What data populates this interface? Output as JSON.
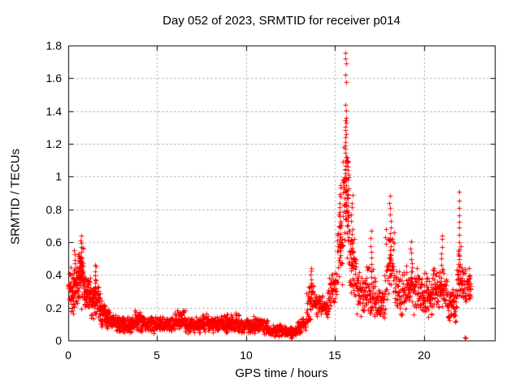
{
  "window": {
    "background": "#ffffff",
    "text_color": "#000000"
  },
  "chart_data": {
    "type": "scatter",
    "title": "Day 052 of 2023, SRMTID for receiver p014",
    "xlabel": "GPS time / hours",
    "ylabel": "SRMTID / TECUs",
    "xlim": [
      0,
      24
    ],
    "ylim": [
      0,
      1.8
    ],
    "xticks": {
      "values": [
        0,
        5,
        10,
        15,
        20
      ],
      "labels": [
        "0",
        "5",
        "10",
        "15",
        "20"
      ]
    },
    "yticks": {
      "values": [
        0,
        0.2,
        0.4,
        0.6,
        0.8,
        1.0,
        1.2,
        1.4,
        1.6,
        1.8
      ],
      "labels": [
        "0",
        "0.2",
        "0.4",
        "0.6",
        "0.8",
        "1",
        "1.2",
        "1.4",
        "1.6",
        "1.8"
      ]
    },
    "grid": {
      "show": true,
      "color": "#9e9e9e",
      "dash": [
        2,
        3
      ]
    },
    "border_color": "#000000",
    "marker": {
      "shape": "plus",
      "color": "#ff0000",
      "size": 7
    },
    "legend": {
      "show": false
    },
    "bands_format": "[hour_start, hour_end, n_points, y_center_start, y_center_end, y_half_spread]",
    "bands": [
      [
        0.0,
        0.15,
        22,
        0.32,
        0.32,
        0.15
      ],
      [
        0.15,
        0.55,
        60,
        0.3,
        0.32,
        0.16
      ],
      [
        0.55,
        0.85,
        55,
        0.4,
        0.38,
        0.2
      ],
      [
        0.85,
        1.3,
        70,
        0.3,
        0.26,
        0.13
      ],
      [
        1.3,
        1.8,
        75,
        0.26,
        0.22,
        0.13
      ],
      [
        1.8,
        2.3,
        70,
        0.18,
        0.14,
        0.09
      ],
      [
        2.3,
        3.0,
        85,
        0.12,
        0.1,
        0.06
      ],
      [
        3.0,
        3.7,
        80,
        0.1,
        0.1,
        0.055
      ],
      [
        3.7,
        4.1,
        48,
        0.13,
        0.12,
        0.07
      ],
      [
        4.1,
        5.0,
        100,
        0.1,
        0.1,
        0.055
      ],
      [
        5.0,
        6.0,
        110,
        0.1,
        0.11,
        0.055
      ],
      [
        6.0,
        6.6,
        65,
        0.13,
        0.12,
        0.07
      ],
      [
        6.6,
        7.5,
        100,
        0.09,
        0.1,
        0.05
      ],
      [
        7.5,
        8.2,
        78,
        0.11,
        0.1,
        0.06
      ],
      [
        8.2,
        9.0,
        88,
        0.1,
        0.11,
        0.06
      ],
      [
        9.0,
        9.6,
        66,
        0.12,
        0.11,
        0.065
      ],
      [
        9.6,
        10.4,
        88,
        0.09,
        0.09,
        0.05
      ],
      [
        10.4,
        11.2,
        88,
        0.1,
        0.09,
        0.06
      ],
      [
        11.2,
        12.2,
        105,
        0.07,
        0.065,
        0.045
      ],
      [
        12.2,
        12.9,
        70,
        0.055,
        0.06,
        0.035
      ],
      [
        12.9,
        13.4,
        52,
        0.08,
        0.11,
        0.05
      ],
      [
        13.4,
        13.8,
        42,
        0.2,
        0.24,
        0.14
      ],
      [
        13.8,
        14.6,
        75,
        0.22,
        0.2,
        0.08
      ],
      [
        14.6,
        15.1,
        48,
        0.26,
        0.38,
        0.13
      ],
      [
        15.1,
        15.45,
        40,
        0.55,
        0.6,
        0.27
      ],
      [
        15.45,
        15.8,
        48,
        0.8,
        0.85,
        0.42
      ],
      [
        15.8,
        16.2,
        45,
        0.5,
        0.4,
        0.25
      ],
      [
        16.2,
        16.7,
        48,
        0.3,
        0.28,
        0.16
      ],
      [
        16.7,
        17.3,
        58,
        0.3,
        0.26,
        0.18
      ],
      [
        17.3,
        17.8,
        48,
        0.22,
        0.22,
        0.12
      ],
      [
        17.8,
        18.35,
        52,
        0.45,
        0.42,
        0.27
      ],
      [
        18.35,
        19.0,
        58,
        0.3,
        0.3,
        0.15
      ],
      [
        19.0,
        19.9,
        80,
        0.33,
        0.3,
        0.16
      ],
      [
        19.9,
        20.5,
        65,
        0.27,
        0.28,
        0.15
      ],
      [
        20.5,
        21.3,
        78,
        0.33,
        0.3,
        0.15
      ],
      [
        21.3,
        21.85,
        58,
        0.22,
        0.23,
        0.13
      ],
      [
        21.85,
        22.1,
        26,
        0.4,
        0.45,
        0.22
      ],
      [
        22.1,
        22.65,
        52,
        0.34,
        0.3,
        0.12
      ]
    ],
    "columns_format": "[hour, y_low, y_high, n_points] dense vertical spike columns",
    "columns": [
      [
        0.36,
        0.3,
        0.55,
        10
      ],
      [
        0.7,
        0.38,
        0.63,
        12
      ],
      [
        1.52,
        0.3,
        0.47,
        8
      ],
      [
        13.65,
        0.26,
        0.45,
        9
      ],
      [
        15.3,
        0.55,
        0.95,
        16
      ],
      [
        15.6,
        0.9,
        1.36,
        20
      ],
      [
        15.72,
        0.72,
        1.12,
        12
      ],
      [
        15.95,
        0.3,
        0.88,
        16
      ],
      [
        17.05,
        0.35,
        0.66,
        9
      ],
      [
        18.1,
        0.4,
        0.88,
        14
      ],
      [
        19.3,
        0.36,
        0.6,
        8
      ],
      [
        21.0,
        0.38,
        0.65,
        8
      ],
      [
        22.0,
        0.3,
        0.9,
        15
      ]
    ],
    "points_format": "[hour, value] notable individual points",
    "points": [
      [
        15.57,
        1.755
      ],
      [
        15.61,
        1.72
      ],
      [
        15.64,
        1.69
      ],
      [
        15.6,
        1.62
      ],
      [
        15.63,
        1.575
      ],
      [
        15.58,
        1.44
      ],
      [
        15.62,
        1.405
      ],
      [
        15.6,
        1.345
      ],
      [
        12.52,
        0.015
      ],
      [
        12.56,
        0.02
      ],
      [
        22.33,
        0.02
      ],
      [
        22.37,
        0.015
      ],
      [
        22.55,
        0.44
      ],
      [
        22.6,
        0.38
      ],
      [
        22.63,
        0.33
      ]
    ]
  }
}
